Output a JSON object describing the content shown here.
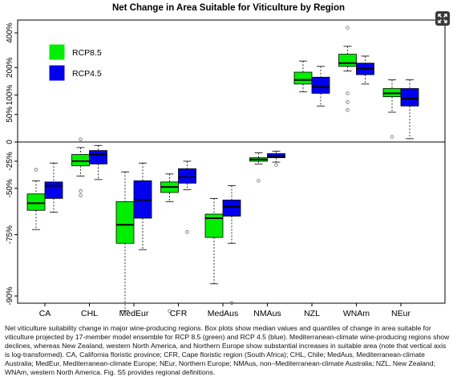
{
  "chart_data": {
    "type": "box",
    "title": "Net Change in Area Suitable for Viticulture by Region",
    "xlabel": "",
    "ylabel": "",
    "y_scale": "log-transformed",
    "ytick_labels": [
      "400%",
      "200%",
      "100%",
      "50%",
      "0",
      "-25%",
      "-50%",
      "-75%",
      "-90%"
    ],
    "ytick_values": [
      400,
      200,
      100,
      50,
      0,
      -25,
      -50,
      -75,
      -90
    ],
    "categories": [
      "CA",
      "CHL",
      "MedEur",
      "CFR",
      "MedAus",
      "NMAus",
      "NZL",
      "WNAm",
      "NEur"
    ],
    "legend": {
      "placement": "top-left",
      "entries": [
        "RCP8.5",
        "RCP4.5"
      ]
    },
    "grid": false,
    "series": [
      {
        "name": "RCP8.5",
        "color": "#00ee00",
        "boxes": [
          {
            "whisker_low": -73,
            "q1": -64,
            "median": -60,
            "q3": -54,
            "whisker_high": -44,
            "outliers": [
              -34
            ]
          },
          {
            "whisker_low": -40,
            "q1": -30,
            "median": -25,
            "q3": -17,
            "whisker_high": -8,
            "outliers": [
              -52,
              -55,
              4
            ]
          },
          {
            "whisker_low": -92,
            "q1": -78,
            "median": -71,
            "q3": -59,
            "whisker_high": -36,
            "outliers": []
          },
          {
            "whisker_low": -59,
            "q1": -53,
            "median": -49,
            "q3": -45,
            "whisker_high": -38,
            "outliers": [
              -92
            ]
          },
          {
            "whisker_low": -88,
            "q1": -76,
            "median": -68,
            "q3": -66,
            "whisker_high": -57,
            "outliers": []
          },
          {
            "whisker_low": -28,
            "q1": -25,
            "median": -23,
            "q3": -21,
            "whisker_high": -15,
            "outliers": [
              -44
            ]
          },
          {
            "whisker_low": 110,
            "q1": 135,
            "median": 150,
            "q3": 180,
            "whisker_high": 230,
            "outliers": []
          },
          {
            "whisker_low": 185,
            "q1": 205,
            "median": 220,
            "q3": 265,
            "whisker_high": 310,
            "outliers": [
              105,
              80,
              60,
              440
            ]
          },
          {
            "whisker_low": 55,
            "q1": 95,
            "median": 105,
            "q3": 120,
            "whisker_high": 150,
            "outliers": [
              8
            ]
          }
        ]
      },
      {
        "name": "RCP4.5",
        "color": "#0000ee",
        "boxes": [
          {
            "whisker_low": -65,
            "q1": -57,
            "median": -48,
            "q3": -45,
            "whisker_high": -27,
            "outliers": []
          },
          {
            "whisker_low": -43,
            "q1": -28,
            "median": -17,
            "q3": -12,
            "whisker_high": -5,
            "outliers": []
          },
          {
            "whisker_low": -80,
            "q1": -68,
            "median": -58,
            "q3": -44,
            "whisker_high": -27,
            "outliers": []
          },
          {
            "whisker_low": -51,
            "q1": -46,
            "median": -41,
            "q3": -33,
            "whisker_high": -25,
            "outliers": [
              -74
            ]
          },
          {
            "whisker_low": -78,
            "q1": -67,
            "median": -62,
            "q3": -58,
            "whisker_high": -48,
            "outliers": [
              -91
            ]
          },
          {
            "whisker_low": -26,
            "q1": -21,
            "median": -19,
            "q3": -16,
            "whisker_high": -13,
            "outliers": [
              -29
            ]
          },
          {
            "whisker_low": 70,
            "q1": 105,
            "median": 125,
            "q3": 160,
            "whisker_high": 205,
            "outliers": []
          },
          {
            "whisker_low": 135,
            "q1": 170,
            "median": 195,
            "q3": 220,
            "whisker_high": 255,
            "outliers": []
          },
          {
            "whisker_low": 5,
            "q1": 70,
            "median": 90,
            "q3": 120,
            "whisker_high": 150,
            "outliers": []
          }
        ]
      }
    ]
  },
  "caption": "Net viticulture suitability change in major wine-producing regions. Box plots show median values and quantiles of change in area suitable for viticulture projected by 17-member model ensemble for RCP 8.5 (green) and RCP 4.5 (blue). Mediterranean-climate wine-producing regions show declines, whereas New Zealand, western North America, and Northern Europe show substantial increases in suitable area (note that vertical axis is log-transformed). CA, California floristic province; CFR, Cape floristic region (South Africa); CHL, Chile; MedAus, Mediterranean-climate Australia; MedEur, Mediterranean-climate Europe; NEur, Northern Europe; NMAus, non–Mediterranean-climate Australia; NZL, New Zealand; WNAm, western North America. Fig. S5 provides regional definitions.",
  "icons": {
    "fullscreen": "expand-icon"
  }
}
